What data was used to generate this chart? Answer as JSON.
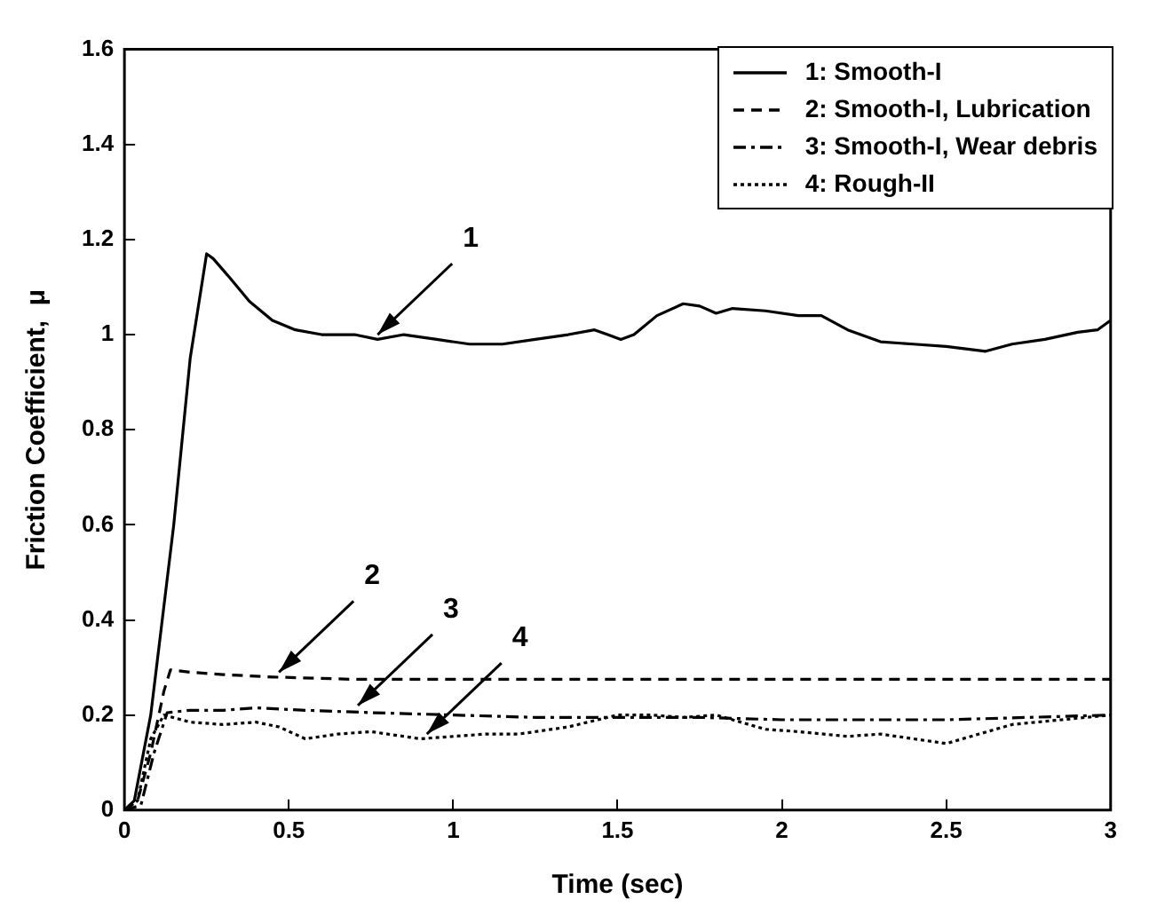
{
  "chart_data": {
    "type": "line",
    "xlabel": "Time (sec)",
    "ylabel": "Friction Coefficient,  μ",
    "xlim": [
      0,
      3
    ],
    "ylim": [
      0,
      1.6
    ],
    "xticks": [
      0,
      0.5,
      1,
      1.5,
      2,
      2.5,
      3
    ],
    "yticks": [
      0,
      0.2,
      0.4,
      0.6,
      0.8,
      1,
      1.2,
      1.4,
      1.6
    ],
    "grid": false,
    "legend": "top right",
    "marker": "none",
    "series": [
      {
        "name": "1: Smooth-I",
        "color": "#000000",
        "line_style": "solid",
        "x": [
          0,
          0.03,
          0.08,
          0.15,
          0.2,
          0.25,
          0.27,
          0.32,
          0.38,
          0.45,
          0.52,
          0.6,
          0.7,
          0.77,
          0.85,
          0.95,
          1.05,
          1.15,
          1.25,
          1.35,
          1.43,
          1.47,
          1.51,
          1.55,
          1.62,
          1.7,
          1.75,
          1.8,
          1.85,
          1.95,
          2.05,
          2.12,
          2.2,
          2.3,
          2.4,
          2.5,
          2.62,
          2.7,
          2.8,
          2.9,
          2.96,
          3
        ],
        "values": [
          0,
          0.02,
          0.2,
          0.6,
          0.95,
          1.17,
          1.16,
          1.12,
          1.07,
          1.03,
          1.01,
          1.0,
          1.0,
          0.99,
          1.0,
          0.99,
          0.98,
          0.98,
          0.99,
          1.0,
          1.01,
          1.0,
          0.99,
          1.0,
          1.04,
          1.065,
          1.06,
          1.045,
          1.055,
          1.05,
          1.04,
          1.04,
          1.01,
          0.985,
          0.98,
          0.975,
          0.965,
          0.98,
          0.99,
          1.005,
          1.01,
          1.03
        ]
      },
      {
        "name": "2: Smooth-I, Lubrication",
        "color": "#000000",
        "line_style": "dashed",
        "x": [
          0,
          0.04,
          0.08,
          0.12,
          0.14,
          0.2,
          0.3,
          0.45,
          0.7,
          1,
          1.5,
          2,
          2.5,
          3
        ],
        "values": [
          0,
          0.02,
          0.12,
          0.25,
          0.295,
          0.29,
          0.285,
          0.28,
          0.275,
          0.275,
          0.275,
          0.275,
          0.275,
          0.275
        ]
      },
      {
        "name": "3: Smooth-I, Wear debris",
        "color": "#000000",
        "line_style": "dashdot",
        "x": [
          0,
          0.05,
          0.09,
          0.13,
          0.2,
          0.3,
          0.4,
          0.55,
          0.75,
          1,
          1.25,
          1.5,
          1.75,
          2,
          2.25,
          2.5,
          2.75,
          3
        ],
        "values": [
          0,
          0.01,
          0.12,
          0.205,
          0.21,
          0.21,
          0.215,
          0.21,
          0.205,
          0.2,
          0.195,
          0.195,
          0.195,
          0.19,
          0.19,
          0.19,
          0.195,
          0.2
        ]
      },
      {
        "name": "4: Rough-II",
        "color": "#000000",
        "line_style": "dotted",
        "x": [
          0,
          0.04,
          0.08,
          0.12,
          0.2,
          0.3,
          0.4,
          0.47,
          0.55,
          0.65,
          0.75,
          0.9,
          1,
          1.1,
          1.2,
          1.35,
          1.5,
          1.6,
          1.7,
          1.8,
          1.9,
          1.95,
          2.05,
          2.2,
          2.3,
          2.4,
          2.5,
          2.6,
          2.7,
          2.85,
          3
        ],
        "values": [
          0,
          0.02,
          0.15,
          0.2,
          0.185,
          0.18,
          0.185,
          0.175,
          0.15,
          0.16,
          0.165,
          0.15,
          0.155,
          0.16,
          0.16,
          0.175,
          0.2,
          0.2,
          0.195,
          0.2,
          0.18,
          0.17,
          0.165,
          0.155,
          0.16,
          0.15,
          0.14,
          0.16,
          0.18,
          0.19,
          0.2
        ]
      }
    ],
    "annotations": [
      {
        "text": "1",
        "x": 0.77,
        "y": 1.0
      },
      {
        "text": "2",
        "x": 0.47,
        "y": 0.29
      },
      {
        "text": "3",
        "x": 0.71,
        "y": 0.22
      },
      {
        "text": "4",
        "x": 0.92,
        "y": 0.16
      }
    ]
  }
}
